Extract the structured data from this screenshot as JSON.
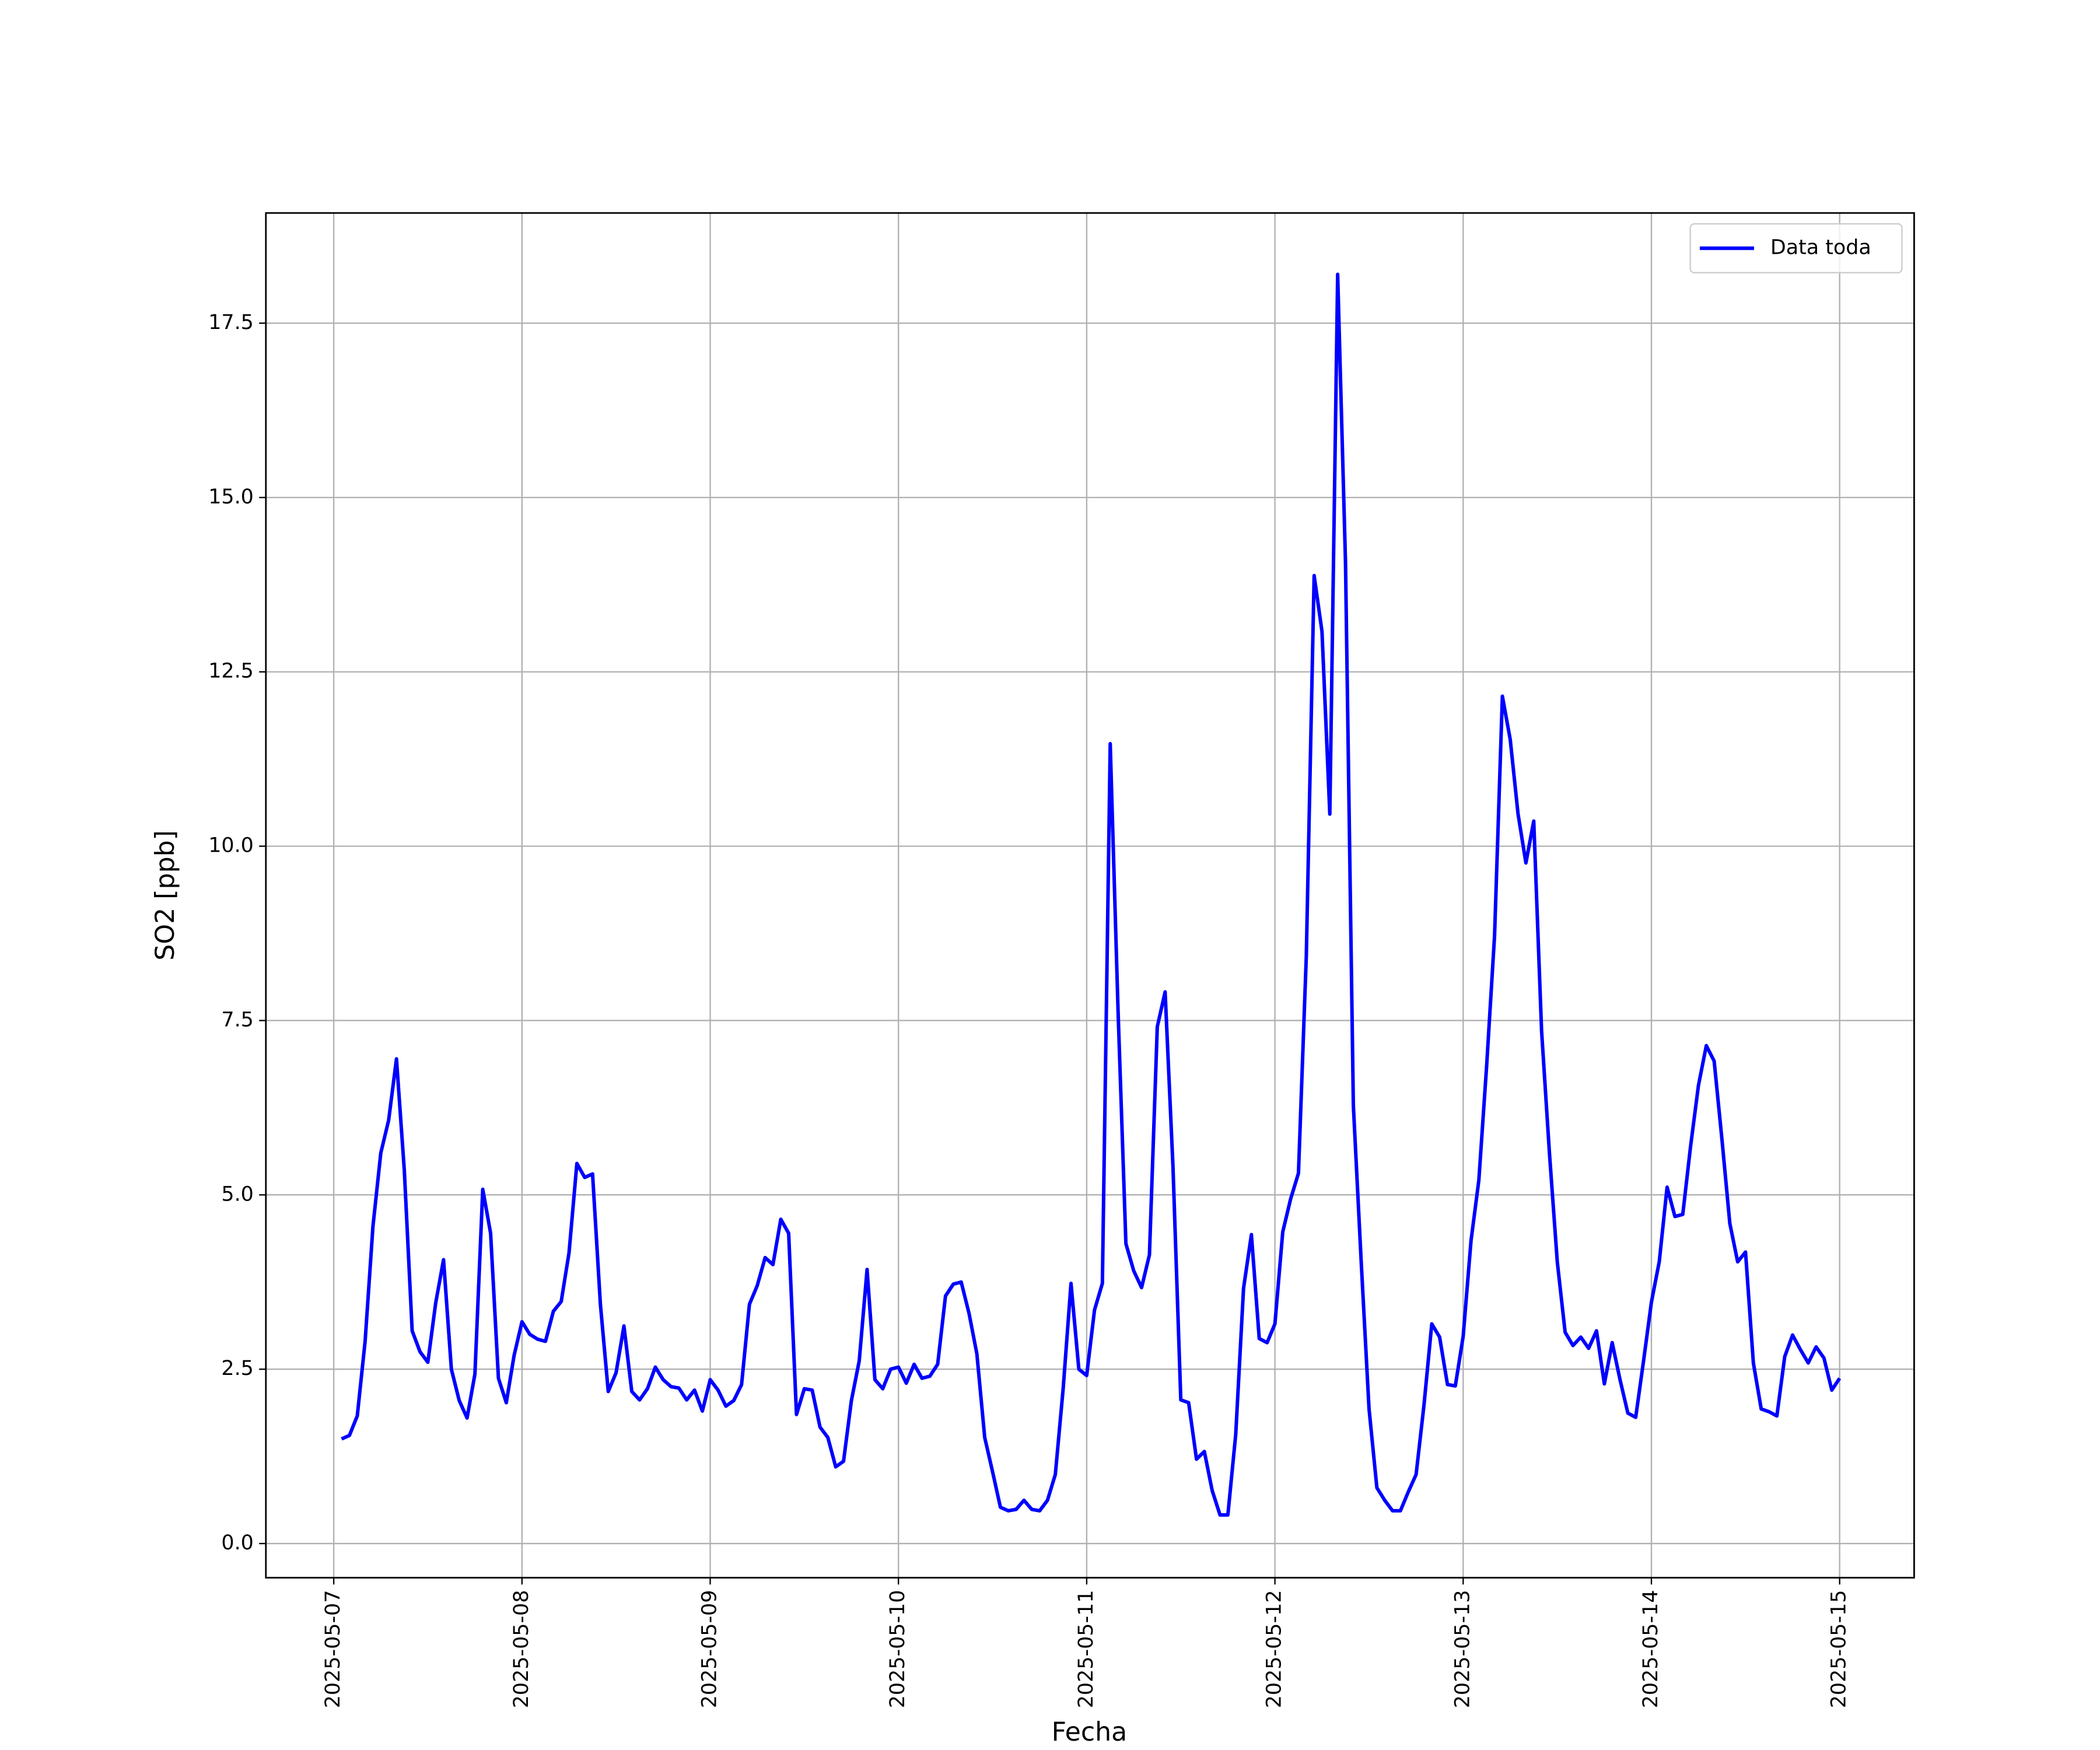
{
  "chart_data": {
    "type": "line",
    "x_label": "Fecha",
    "y_label": "SO2 [ppb]",
    "x": [
      "2025-05-07 01:00",
      "2025-05-07 02:00",
      "2025-05-07 03:00",
      "2025-05-07 04:00",
      "2025-05-07 05:00",
      "2025-05-07 06:00",
      "2025-05-07 07:00",
      "2025-05-07 08:00",
      "2025-05-07 09:00",
      "2025-05-07 10:00",
      "2025-05-07 11:00",
      "2025-05-07 12:00",
      "2025-05-07 13:00",
      "2025-05-07 14:00",
      "2025-05-07 15:00",
      "2025-05-07 16:00",
      "2025-05-07 17:00",
      "2025-05-07 18:00",
      "2025-05-07 19:00",
      "2025-05-07 20:00",
      "2025-05-07 21:00",
      "2025-05-07 22:00",
      "2025-05-07 23:00",
      "2025-05-08 00:00",
      "2025-05-08 01:00",
      "2025-05-08 02:00",
      "2025-05-08 03:00",
      "2025-05-08 04:00",
      "2025-05-08 05:00",
      "2025-05-08 06:00",
      "2025-05-08 07:00",
      "2025-05-08 08:00",
      "2025-05-08 09:00",
      "2025-05-08 10:00",
      "2025-05-08 11:00",
      "2025-05-08 12:00",
      "2025-05-08 13:00",
      "2025-05-08 14:00",
      "2025-05-08 15:00",
      "2025-05-08 16:00",
      "2025-05-08 17:00",
      "2025-05-08 18:00",
      "2025-05-08 19:00",
      "2025-05-08 20:00",
      "2025-05-08 21:00",
      "2025-05-08 22:00",
      "2025-05-08 23:00",
      "2025-05-09 00:00",
      "2025-05-09 01:00",
      "2025-05-09 02:00",
      "2025-05-09 03:00",
      "2025-05-09 04:00",
      "2025-05-09 05:00",
      "2025-05-09 06:00",
      "2025-05-09 07:00",
      "2025-05-09 08:00",
      "2025-05-09 09:00",
      "2025-05-09 10:00",
      "2025-05-09 11:00",
      "2025-05-09 12:00",
      "2025-05-09 13:00",
      "2025-05-09 14:00",
      "2025-05-09 15:00",
      "2025-05-09 16:00",
      "2025-05-09 17:00",
      "2025-05-09 18:00",
      "2025-05-09 19:00",
      "2025-05-09 20:00",
      "2025-05-09 21:00",
      "2025-05-09 22:00",
      "2025-05-09 23:00",
      "2025-05-10 00:00",
      "2025-05-10 01:00",
      "2025-05-10 02:00",
      "2025-05-10 03:00",
      "2025-05-10 04:00",
      "2025-05-10 05:00",
      "2025-05-10 06:00",
      "2025-05-10 07:00",
      "2025-05-10 08:00",
      "2025-05-10 09:00",
      "2025-05-10 10:00",
      "2025-05-10 11:00",
      "2025-05-10 12:00",
      "2025-05-10 13:00",
      "2025-05-10 14:00",
      "2025-05-10 15:00",
      "2025-05-10 16:00",
      "2025-05-10 17:00",
      "2025-05-10 18:00",
      "2025-05-10 19:00",
      "2025-05-10 20:00",
      "2025-05-10 21:00",
      "2025-05-10 22:00",
      "2025-05-10 23:00",
      "2025-05-11 00:00",
      "2025-05-11 01:00",
      "2025-05-11 02:00",
      "2025-05-11 03:00",
      "2025-05-11 04:00",
      "2025-05-11 05:00",
      "2025-05-11 06:00",
      "2025-05-11 07:00",
      "2025-05-11 08:00",
      "2025-05-11 09:00",
      "2025-05-11 10:00",
      "2025-05-11 11:00",
      "2025-05-11 12:00",
      "2025-05-11 13:00",
      "2025-05-11 14:00",
      "2025-05-11 15:00",
      "2025-05-11 16:00",
      "2025-05-11 17:00",
      "2025-05-11 18:00",
      "2025-05-11 19:00",
      "2025-05-11 20:00",
      "2025-05-11 21:00",
      "2025-05-11 22:00",
      "2025-05-11 23:00",
      "2025-05-12 00:00",
      "2025-05-12 01:00",
      "2025-05-12 02:00",
      "2025-05-12 03:00",
      "2025-05-12 04:00",
      "2025-05-12 05:00",
      "2025-05-12 06:00",
      "2025-05-12 07:00",
      "2025-05-12 08:00",
      "2025-05-12 09:00",
      "2025-05-12 10:00",
      "2025-05-12 11:00",
      "2025-05-12 12:00",
      "2025-05-12 13:00",
      "2025-05-12 14:00",
      "2025-05-12 15:00",
      "2025-05-12 16:00",
      "2025-05-12 17:00",
      "2025-05-12 18:00",
      "2025-05-12 19:00",
      "2025-05-12 20:00",
      "2025-05-12 21:00",
      "2025-05-12 22:00",
      "2025-05-12 23:00",
      "2025-05-13 00:00",
      "2025-05-13 01:00",
      "2025-05-13 02:00",
      "2025-05-13 03:00",
      "2025-05-13 04:00",
      "2025-05-13 05:00",
      "2025-05-13 06:00",
      "2025-05-13 07:00",
      "2025-05-13 08:00",
      "2025-05-13 09:00",
      "2025-05-13 10:00",
      "2025-05-13 11:00",
      "2025-05-13 12:00",
      "2025-05-13 13:00",
      "2025-05-13 14:00",
      "2025-05-13 15:00",
      "2025-05-13 16:00",
      "2025-05-13 17:00",
      "2025-05-13 18:00",
      "2025-05-13 19:00",
      "2025-05-13 20:00",
      "2025-05-13 21:00",
      "2025-05-13 22:00",
      "2025-05-13 23:00",
      "2025-05-14 00:00",
      "2025-05-14 01:00",
      "2025-05-14 02:00",
      "2025-05-14 03:00",
      "2025-05-14 04:00",
      "2025-05-14 05:00",
      "2025-05-14 06:00",
      "2025-05-14 07:00",
      "2025-05-14 08:00",
      "2025-05-14 09:00",
      "2025-05-14 10:00",
      "2025-05-14 11:00",
      "2025-05-14 12:00",
      "2025-05-14 13:00",
      "2025-05-14 14:00",
      "2025-05-14 15:00",
      "2025-05-14 16:00",
      "2025-05-14 17:00",
      "2025-05-14 18:00",
      "2025-05-14 19:00",
      "2025-05-14 20:00",
      "2025-05-14 21:00",
      "2025-05-14 22:00",
      "2025-05-14 23:00",
      "2025-05-15 00:00"
    ],
    "series": [
      {
        "name": "Data toda",
        "color": "#0000ff",
        "values": [
          1.5,
          1.55,
          1.83,
          2.9,
          4.55,
          5.6,
          6.07,
          6.95,
          5.35,
          3.05,
          2.75,
          2.6,
          3.45,
          4.07,
          2.5,
          2.05,
          1.8,
          2.43,
          5.08,
          4.45,
          2.37,
          2.02,
          2.7,
          3.18,
          3.0,
          2.93,
          2.9,
          3.33,
          3.47,
          4.17,
          5.45,
          5.25,
          5.3,
          3.43,
          2.18,
          2.45,
          3.12,
          2.18,
          2.06,
          2.22,
          2.53,
          2.35,
          2.25,
          2.23,
          2.06,
          2.2,
          1.9,
          2.35,
          2.2,
          1.97,
          2.05,
          2.28,
          3.43,
          3.7,
          4.1,
          4.0,
          4.65,
          4.45,
          1.85,
          2.22,
          2.2,
          1.67,
          1.52,
          1.1,
          1.18,
          2.05,
          2.62,
          3.93,
          2.35,
          2.22,
          2.5,
          2.53,
          2.3,
          2.57,
          2.37,
          2.4,
          2.57,
          3.55,
          3.72,
          3.75,
          3.3,
          2.72,
          1.52,
          1.03,
          0.52,
          0.47,
          0.49,
          0.62,
          0.49,
          0.47,
          0.62,
          0.99,
          2.22,
          3.73,
          2.5,
          2.41,
          3.35,
          3.73,
          11.47,
          7.64,
          4.3,
          3.91,
          3.67,
          4.14,
          7.41,
          7.91,
          5.41,
          2.06,
          2.02,
          1.21,
          1.32,
          0.76,
          0.41,
          0.41,
          1.56,
          3.66,
          4.43,
          2.94,
          2.88,
          3.15,
          4.47,
          4.94,
          5.31,
          8.42,
          13.88,
          13.08,
          10.46,
          18.2,
          14.06,
          6.28,
          4.04,
          1.93,
          0.8,
          0.62,
          0.47,
          0.47,
          0.74,
          0.99,
          1.98,
          3.15,
          2.96,
          2.28,
          2.26,
          2.97,
          4.34,
          5.21,
          6.86,
          8.71,
          12.15,
          11.53,
          10.46,
          9.76,
          10.36,
          7.35,
          5.6,
          4.04,
          3.03,
          2.84,
          2.96,
          2.8,
          3.05,
          2.29,
          2.88,
          2.35,
          1.87,
          1.81,
          2.62,
          3.46,
          4.04,
          5.11,
          4.69,
          4.72,
          5.7,
          6.57,
          7.14,
          6.92,
          5.79,
          4.59,
          4.04,
          4.18,
          2.59,
          1.93,
          1.89,
          1.83,
          2.68,
          2.99,
          2.78,
          2.59,
          2.82,
          2.66,
          2.2,
          2.37
        ]
      }
    ],
    "xlim": [
      "2025-05-06 15:21",
      "2025-05-15 09:30"
    ],
    "xticks": [
      "2025-05-07",
      "2025-05-08",
      "2025-05-09",
      "2025-05-10",
      "2025-05-11",
      "2025-05-12",
      "2025-05-13",
      "2025-05-14",
      "2025-05-15"
    ],
    "ylim": [
      -0.49,
      19.08
    ],
    "yticks": [
      {
        "value": 0,
        "label": "0.0"
      },
      2.5,
      {
        "value": 5,
        "label": "5.0"
      },
      7.5,
      {
        "value": 10,
        "label": "10.0"
      },
      12.5,
      {
        "value": 15,
        "label": "15.0"
      },
      17.5
    ],
    "grid": true,
    "legend_position": "upper right"
  }
}
